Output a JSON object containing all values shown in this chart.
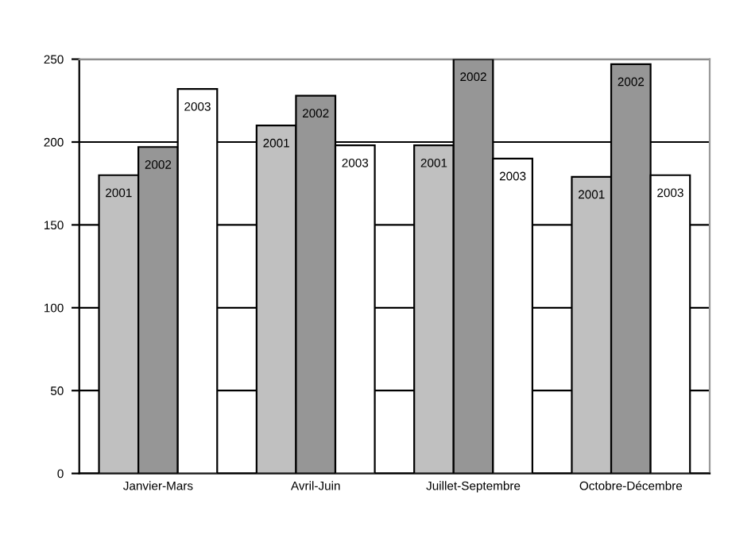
{
  "chart_data": {
    "type": "bar",
    "categories": [
      "Janvier-Mars",
      "Avril-Juin",
      "Juillet-Septembre",
      "Octobre-Décembre"
    ],
    "series": [
      {
        "name": "2001",
        "color": "#c0c0c0",
        "values": [
          180,
          210,
          198,
          179
        ]
      },
      {
        "name": "2002",
        "color": "#969696",
        "values": [
          197,
          228,
          250,
          247
        ]
      },
      {
        "name": "2003",
        "color": "#ffffff",
        "values": [
          232,
          198,
          190,
          180
        ]
      }
    ],
    "ylim": [
      0,
      250
    ],
    "yticks": [
      0,
      50,
      100,
      150,
      200,
      250
    ],
    "grid": "y",
    "legend": false
  }
}
